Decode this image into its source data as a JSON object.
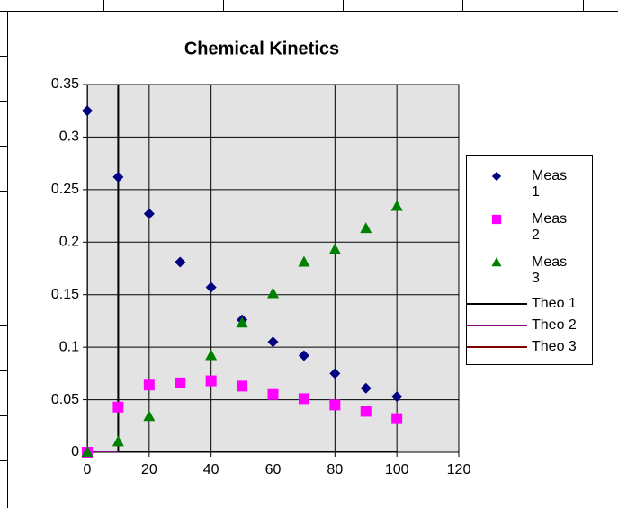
{
  "chart_data": {
    "type": "scatter",
    "title": "Chemical Kinetics",
    "xlim": [
      0,
      120
    ],
    "xticks": [
      0,
      20,
      40,
      60,
      80,
      100,
      120
    ],
    "ylim": [
      0,
      0.35
    ],
    "yticks": [
      0,
      0.05,
      0.1,
      0.15,
      0.2,
      0.25,
      0.3,
      0.35
    ],
    "grid": true,
    "legend": "right",
    "series": [
      {
        "name": "Meas 1",
        "color": "#000080",
        "marker": "diamond",
        "x": [
          0,
          10,
          20,
          30,
          40,
          50,
          60,
          70,
          80,
          90,
          100
        ],
        "values": [
          0.325,
          0.262,
          0.227,
          0.181,
          0.157,
          0.126,
          0.105,
          0.092,
          0.075,
          0.061,
          0.053
        ]
      },
      {
        "name": "Meas 2",
        "color": "#ff00ff",
        "marker": "square",
        "x": [
          0,
          10,
          20,
          30,
          40,
          50,
          60,
          70,
          80,
          90,
          100
        ],
        "values": [
          0,
          0.043,
          0.064,
          0.066,
          0.068,
          0.063,
          0.055,
          0.051,
          0.045,
          0.039,
          0.032
        ]
      },
      {
        "name": "Meas 3",
        "color": "#008000",
        "marker": "triangle",
        "x": [
          0,
          10,
          20,
          30,
          40,
          50,
          60,
          70,
          80,
          90,
          100
        ],
        "values": [
          0,
          0.01,
          0.034,
          null,
          0.092,
          0.123,
          0.151,
          0.181,
          0.193,
          0.213,
          0.234
        ]
      },
      {
        "name": "Theo 1",
        "color": "#000000",
        "marker": "line",
        "x": [
          10,
          10,
          100
        ],
        "values": [
          0.35,
          0,
          0
        ]
      },
      {
        "name": "Theo 2",
        "color": "#800080",
        "marker": "line",
        "x": [
          0,
          10
        ],
        "values": [
          0,
          0
        ]
      },
      {
        "name": "Theo 3",
        "color": "#800000",
        "marker": "line",
        "x": [
          0,
          0
        ],
        "values": [
          0.35,
          0
        ]
      }
    ]
  }
}
